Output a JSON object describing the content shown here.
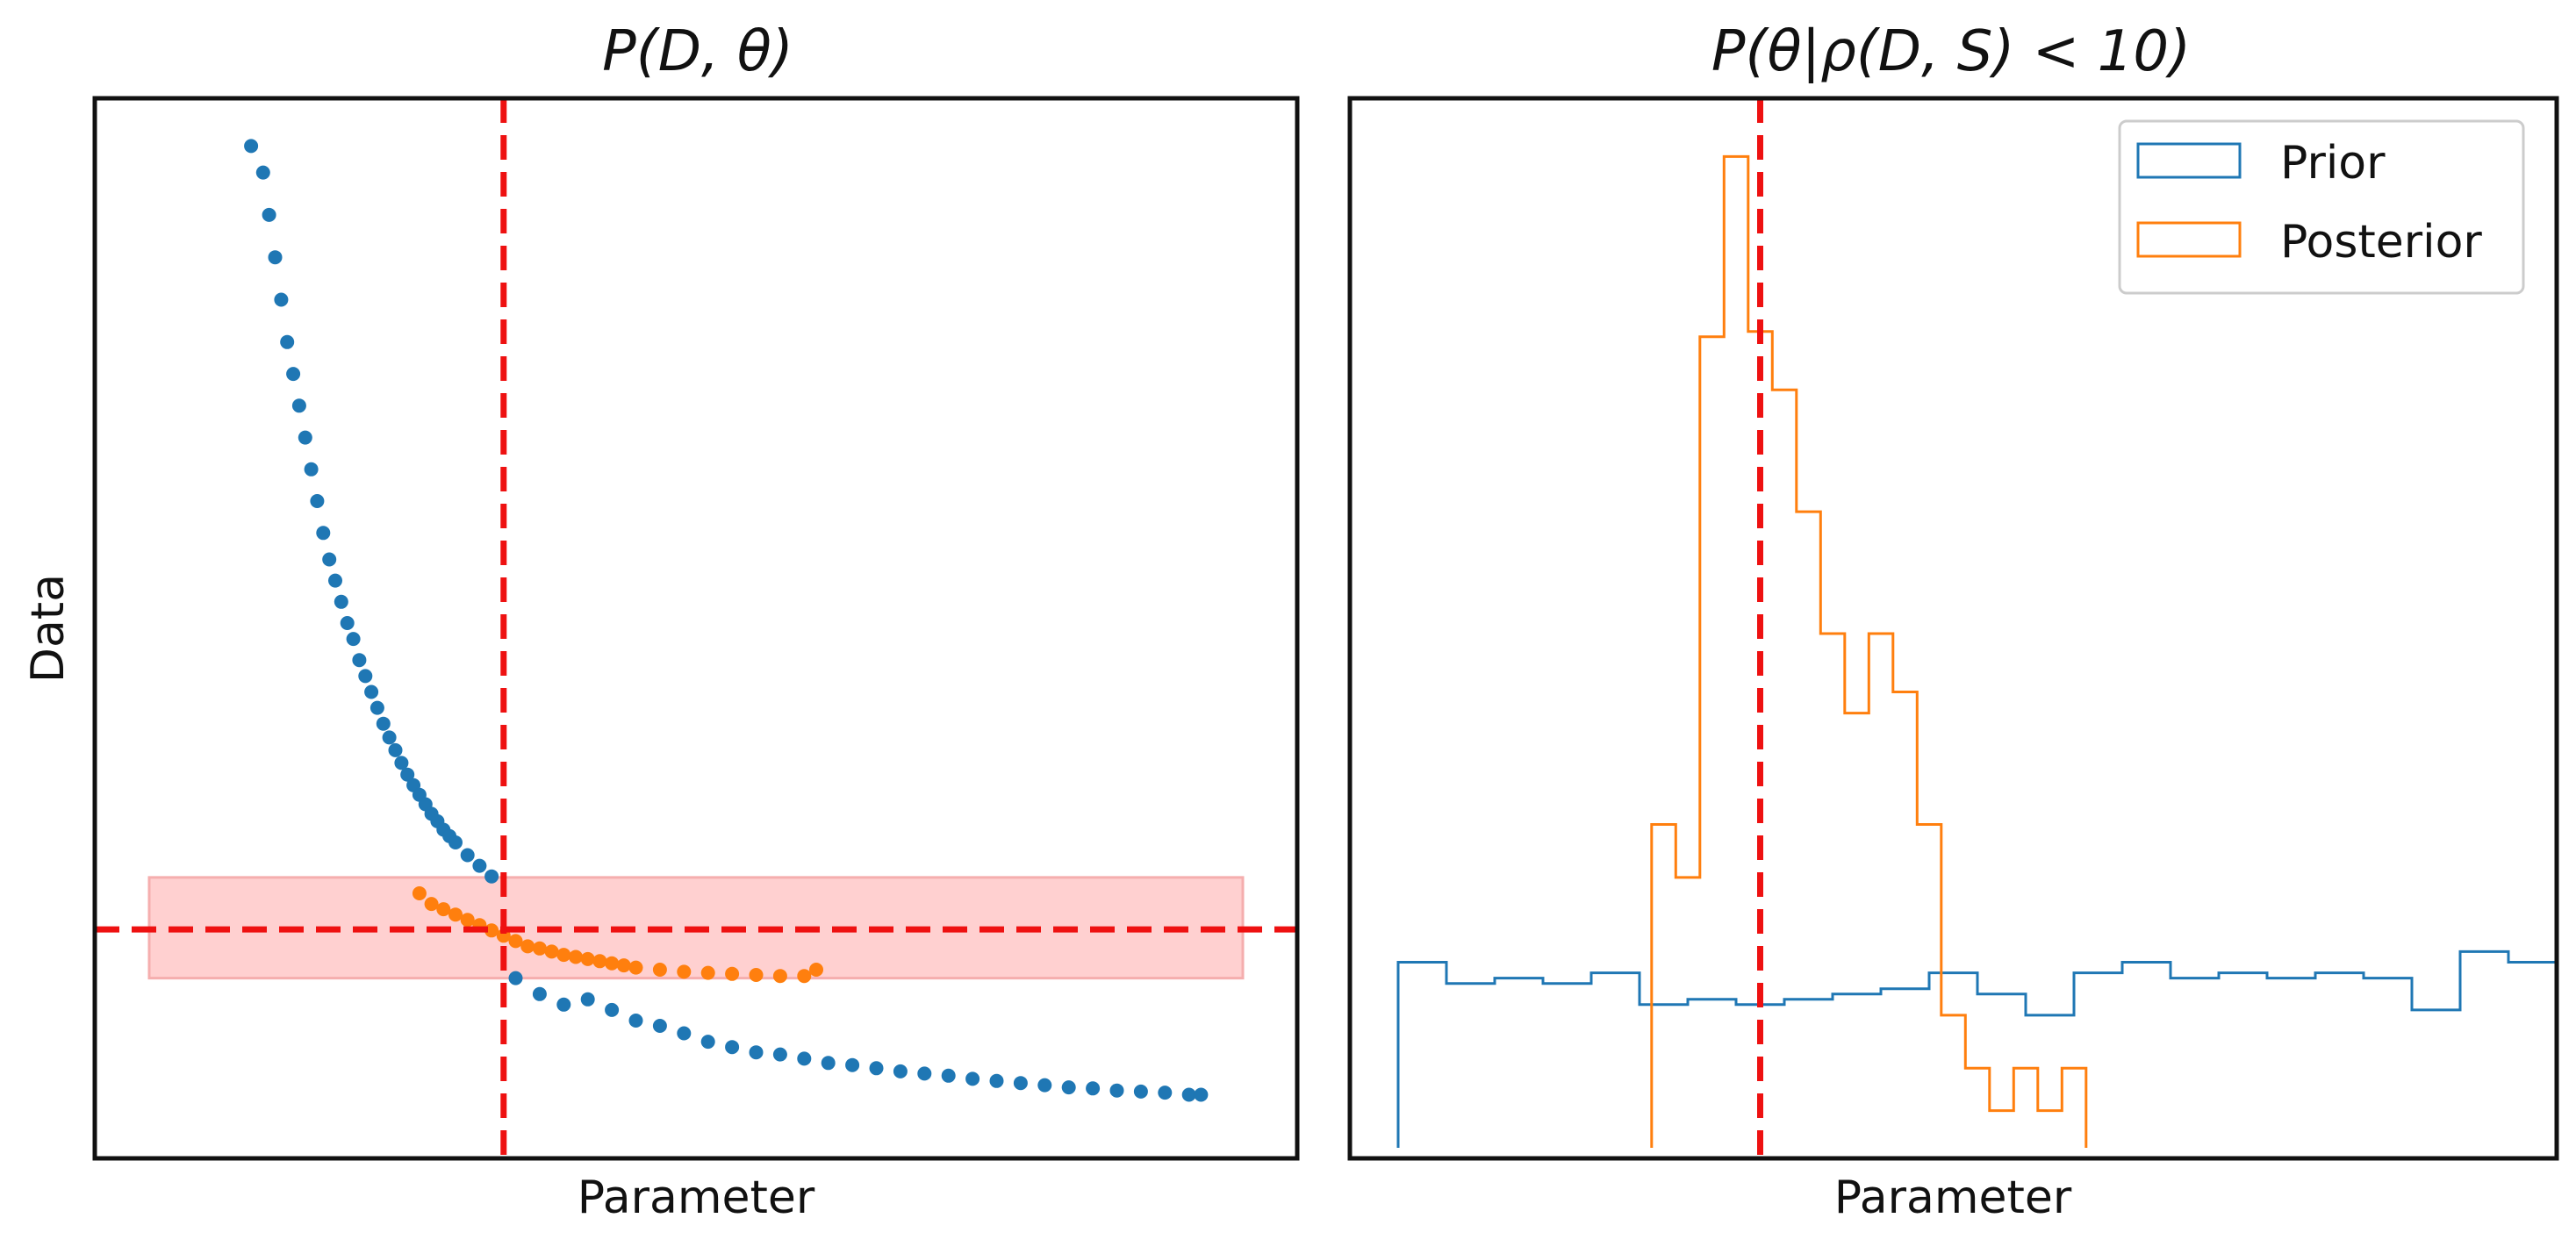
{
  "chart_data": [
    {
      "type": "scatter",
      "title": "P(D, θ)",
      "xlabel": "Parameter",
      "ylabel": "Data",
      "xlim": [
        0,
        1
      ],
      "ylim": [
        0,
        1
      ],
      "ticks_visible": false,
      "grid": false,
      "observed_parameter": 0.34,
      "observed_data": 0.216,
      "acceptance_band": {
        "lower": 0.17,
        "upper": 0.265,
        "color": "#ffcccc"
      },
      "series": [
        {
          "color": "#1f77b4",
          "role": "all-samples",
          "points": [
            [
              0.13,
              0.955
            ],
            [
              0.14,
              0.93
            ],
            [
              0.145,
              0.89
            ],
            [
              0.15,
              0.85
            ],
            [
              0.155,
              0.81
            ],
            [
              0.16,
              0.77
            ],
            [
              0.165,
              0.74
            ],
            [
              0.17,
              0.71
            ],
            [
              0.175,
              0.68
            ],
            [
              0.18,
              0.65
            ],
            [
              0.185,
              0.62
            ],
            [
              0.19,
              0.59
            ],
            [
              0.195,
              0.565
            ],
            [
              0.2,
              0.545
            ],
            [
              0.205,
              0.525
            ],
            [
              0.21,
              0.505
            ],
            [
              0.215,
              0.49
            ],
            [
              0.22,
              0.47
            ],
            [
              0.225,
              0.455
            ],
            [
              0.23,
              0.44
            ],
            [
              0.235,
              0.425
            ],
            [
              0.24,
              0.41
            ],
            [
              0.245,
              0.397
            ],
            [
              0.25,
              0.385
            ],
            [
              0.255,
              0.373
            ],
            [
              0.26,
              0.362
            ],
            [
              0.265,
              0.352
            ],
            [
              0.27,
              0.343
            ],
            [
              0.275,
              0.334
            ],
            [
              0.28,
              0.325
            ],
            [
              0.285,
              0.318
            ],
            [
              0.29,
              0.31
            ],
            [
              0.295,
              0.304
            ],
            [
              0.3,
              0.298
            ],
            [
              0.31,
              0.286
            ],
            [
              0.32,
              0.276
            ],
            [
              0.33,
              0.266
            ],
            [
              0.35,
              0.17
            ],
            [
              0.37,
              0.155
            ],
            [
              0.39,
              0.145
            ],
            [
              0.41,
              0.15
            ],
            [
              0.43,
              0.14
            ],
            [
              0.45,
              0.13
            ],
            [
              0.47,
              0.125
            ],
            [
              0.49,
              0.118
            ],
            [
              0.51,
              0.11
            ],
            [
              0.53,
              0.105
            ],
            [
              0.55,
              0.1
            ],
            [
              0.57,
              0.098
            ],
            [
              0.59,
              0.094
            ],
            [
              0.61,
              0.09
            ],
            [
              0.63,
              0.088
            ],
            [
              0.65,
              0.085
            ],
            [
              0.67,
              0.082
            ],
            [
              0.69,
              0.08
            ],
            [
              0.71,
              0.078
            ],
            [
              0.73,
              0.075
            ],
            [
              0.75,
              0.073
            ],
            [
              0.77,
              0.071
            ],
            [
              0.79,
              0.069
            ],
            [
              0.81,
              0.067
            ],
            [
              0.83,
              0.066
            ],
            [
              0.85,
              0.064
            ],
            [
              0.87,
              0.063
            ],
            [
              0.89,
              0.062
            ],
            [
              0.91,
              0.06
            ],
            [
              0.92,
              0.06
            ]
          ]
        },
        {
          "color": "#ff7f0e",
          "role": "accepted-samples",
          "points": [
            [
              0.27,
              0.25
            ],
            [
              0.28,
              0.24
            ],
            [
              0.29,
              0.235
            ],
            [
              0.3,
              0.23
            ],
            [
              0.31,
              0.225
            ],
            [
              0.32,
              0.22
            ],
            [
              0.33,
              0.215
            ],
            [
              0.34,
              0.21
            ],
            [
              0.35,
              0.205
            ],
            [
              0.36,
              0.2
            ],
            [
              0.37,
              0.198
            ],
            [
              0.38,
              0.195
            ],
            [
              0.39,
              0.192
            ],
            [
              0.4,
              0.19
            ],
            [
              0.41,
              0.188
            ],
            [
              0.42,
              0.186
            ],
            [
              0.43,
              0.184
            ],
            [
              0.44,
              0.182
            ],
            [
              0.45,
              0.18
            ],
            [
              0.47,
              0.178
            ],
            [
              0.49,
              0.176
            ],
            [
              0.51,
              0.175
            ],
            [
              0.53,
              0.174
            ],
            [
              0.55,
              0.173
            ],
            [
              0.57,
              0.172
            ],
            [
              0.59,
              0.172
            ],
            [
              0.6,
              0.178
            ]
          ]
        }
      ]
    },
    {
      "type": "histogram",
      "title": "P(θ|ρ(D, S) < 10)",
      "xlabel": "Parameter",
      "ylabel": "",
      "ticks_visible": false,
      "grid": false,
      "observed_parameter": 0.34,
      "legend": {
        "position": "top-right",
        "entries": [
          "Prior",
          "Posterior"
        ]
      },
      "bin_edges": [
        0.04,
        0.08,
        0.12,
        0.16,
        0.2,
        0.24,
        0.28,
        0.32,
        0.36,
        0.4,
        0.44,
        0.48,
        0.52,
        0.56,
        0.6,
        0.64,
        0.68,
        0.72,
        0.76,
        0.8,
        0.84,
        0.88,
        0.92,
        0.96,
        1.0
      ],
      "series": [
        {
          "name": "Prior",
          "color": "#1f77b4",
          "bin_edges": [
            0.04,
            0.08,
            0.12,
            0.16,
            0.2,
            0.24,
            0.28,
            0.32,
            0.36,
            0.4,
            0.44,
            0.48,
            0.52,
            0.56,
            0.6,
            0.64,
            0.68,
            0.72,
            0.76,
            0.8,
            0.84,
            0.88,
            0.92,
            0.96,
            1.0
          ],
          "values": [
            0.185,
            0.165,
            0.17,
            0.165,
            0.175,
            0.145,
            0.15,
            0.145,
            0.15,
            0.155,
            0.16,
            0.175,
            0.155,
            0.135,
            0.175,
            0.185,
            0.17,
            0.175,
            0.17,
            0.175,
            0.17,
            0.14,
            0.195,
            0.185
          ]
        },
        {
          "name": "Posterior",
          "color": "#ff7f0e",
          "bin_edges": [
            0.25,
            0.27,
            0.29,
            0.31,
            0.33,
            0.35,
            0.37,
            0.39,
            0.41,
            0.43,
            0.45,
            0.47,
            0.49,
            0.51,
            0.53,
            0.55,
            0.57,
            0.59,
            0.61
          ],
          "values": [
            0.315,
            0.265,
            0.775,
            0.945,
            0.78,
            0.725,
            0.61,
            0.495,
            0.42,
            0.495,
            0.44,
            0.315,
            0.135,
            0.085,
            0.045,
            0.085,
            0.045,
            0.085
          ]
        }
      ]
    }
  ]
}
